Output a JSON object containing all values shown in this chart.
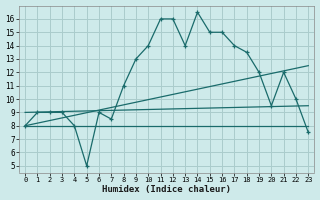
{
  "bg_color": "#ceeaea",
  "line_color": "#1a6b6b",
  "grid_color": "#aacccc",
  "xlabel": "Humidex (Indice chaleur)",
  "xlim": [
    -0.5,
    23.5
  ],
  "ylim": [
    4.5,
    17.0
  ],
  "xticks": [
    0,
    1,
    2,
    3,
    4,
    5,
    6,
    7,
    8,
    9,
    10,
    11,
    12,
    13,
    14,
    15,
    16,
    17,
    18,
    19,
    20,
    21,
    22,
    23
  ],
  "yticks": [
    5,
    6,
    7,
    8,
    9,
    10,
    11,
    12,
    13,
    14,
    15,
    16
  ],
  "curve1_x": [
    0,
    1,
    2,
    3,
    4,
    5,
    6,
    7,
    8,
    9,
    10,
    11,
    12,
    13,
    14,
    15,
    16,
    17,
    18,
    19,
    20,
    21,
    22,
    23
  ],
  "curve1_y": [
    8,
    9,
    9,
    9,
    8,
    5,
    9,
    8.5,
    11,
    13,
    14,
    16,
    16,
    14,
    16.5,
    15,
    15,
    14,
    13.5,
    12,
    9.5,
    12,
    10,
    7.5
  ],
  "curve2_x": [
    0,
    23
  ],
  "curve2_y": [
    8.0,
    12.5
  ],
  "curve3_x": [
    0,
    23
  ],
  "curve3_y": [
    9.0,
    9.5
  ],
  "curve4_x": [
    0,
    23
  ],
  "curve4_y": [
    8.0,
    8.0
  ]
}
